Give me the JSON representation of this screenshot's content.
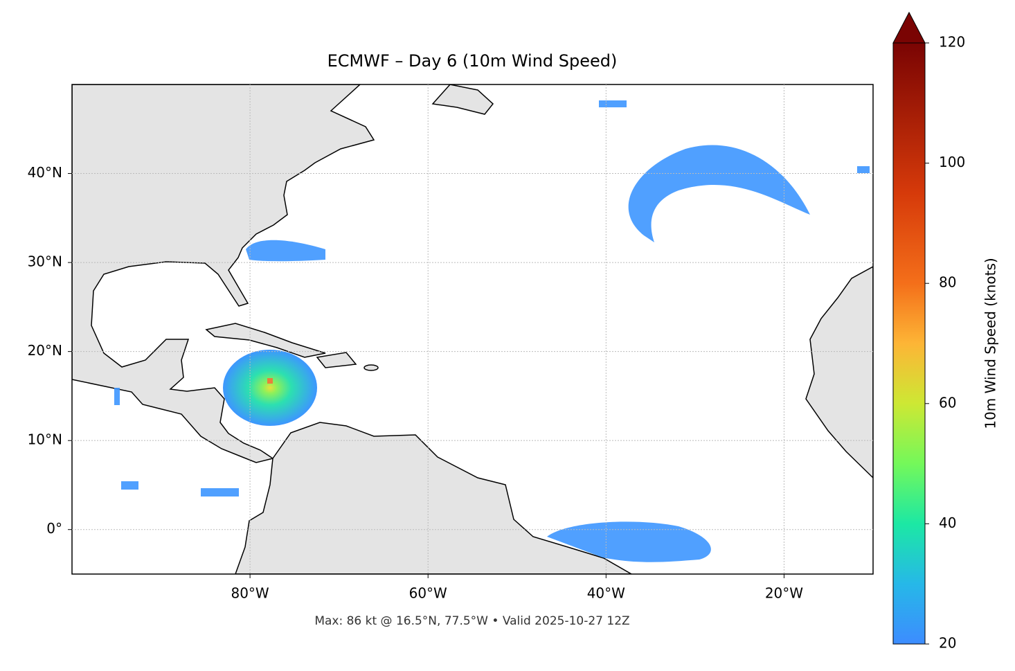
{
  "chart_data": {
    "type": "map",
    "title": "ECMWF – Day 6 (10m Wind Speed)",
    "note": "Max: 86 kt @ 16.5°N, 77.5°W • Valid 2025-10-27 12Z",
    "xlim": [
      -100,
      -10
    ],
    "ylim": [
      -5,
      50
    ],
    "xticks": [
      {
        "value": -80,
        "label": "80°W"
      },
      {
        "value": -60,
        "label": "60°W"
      },
      {
        "value": -40,
        "label": "40°W"
      },
      {
        "value": -20,
        "label": "20°W"
      }
    ],
    "yticks": [
      {
        "value": 0,
        "label": "0°"
      },
      {
        "value": 10,
        "label": "10°N"
      },
      {
        "value": 20,
        "label": "20°N"
      },
      {
        "value": 30,
        "label": "30°N"
      },
      {
        "value": 40,
        "label": "40°N"
      }
    ],
    "grid": true,
    "colorbar": {
      "label": "10m Wind Speed (knots)",
      "lim": [
        20,
        120
      ],
      "ticks": [
        20,
        40,
        60,
        80,
        100,
        120
      ]
    }
  }
}
